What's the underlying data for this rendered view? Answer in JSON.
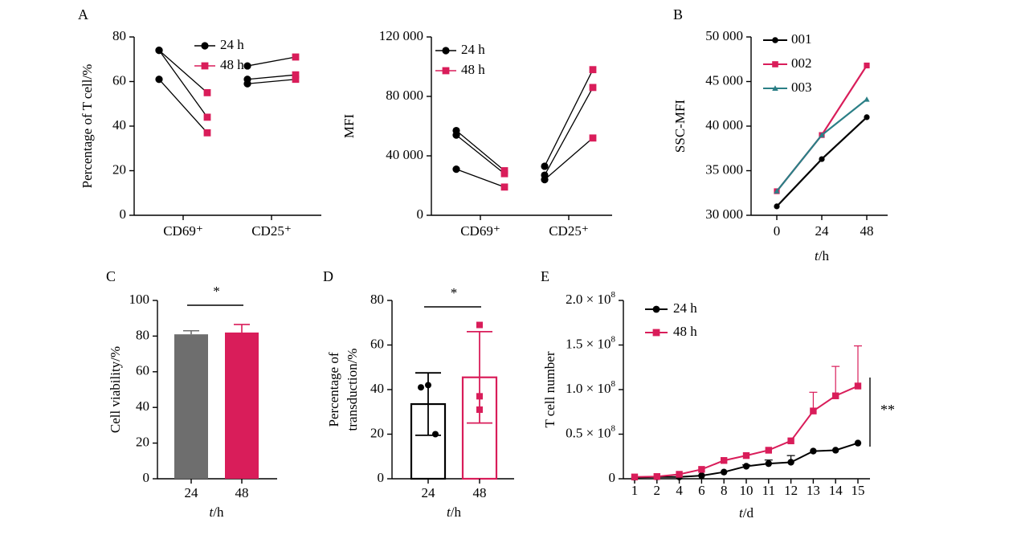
{
  "colors": {
    "black": "#000000",
    "pink": "#d91d5a",
    "teal": "#2b7f86",
    "gray": "#6e6e6e"
  },
  "chart_data": [
    {
      "panel": "A",
      "type": "paired-line",
      "ylabel": "Percentage of T cell/%",
      "categories": [
        "CD69⁺",
        "CD25⁺"
      ],
      "ylim": [
        0,
        80
      ],
      "yticks": [
        "0",
        "20",
        "40",
        "60",
        "80"
      ],
      "legend": [
        "24 h",
        "48 h"
      ],
      "groups": [
        {
          "category": "CD69⁺",
          "pairs": [
            [
              74,
              55
            ],
            [
              74,
              44
            ],
            [
              61,
              37
            ]
          ]
        },
        {
          "category": "CD25⁺",
          "pairs": [
            [
              67,
              71
            ],
            [
              61,
              63
            ],
            [
              59,
              61
            ]
          ]
        }
      ]
    },
    {
      "panel": "",
      "type": "paired-line",
      "ylabel": "MFI",
      "categories": [
        "CD69⁺",
        "CD25⁺"
      ],
      "ylim": [
        0,
        120000
      ],
      "yticks": [
        "0",
        "40 000",
        "80 000",
        "120 000"
      ],
      "legend": [
        "24 h",
        "48 h"
      ],
      "groups": [
        {
          "category": "CD69⁺",
          "pairs": [
            [
              57000,
              30000
            ],
            [
              54000,
              28000
            ],
            [
              31000,
              19000
            ]
          ]
        },
        {
          "category": "CD25⁺",
          "pairs": [
            [
              33000,
              98000
            ],
            [
              27000,
              86000
            ],
            [
              24000,
              52000
            ]
          ]
        }
      ]
    },
    {
      "panel": "B",
      "type": "line",
      "ylabel": "SSC-MFI",
      "xlabel": "t/h",
      "x": [
        0,
        24,
        48
      ],
      "xticks": [
        "0",
        "24",
        "48"
      ],
      "ylim": [
        30000,
        50000
      ],
      "yticks": [
        "30 000",
        "35 000",
        "40 000",
        "45 000",
        "50 000"
      ],
      "series": [
        {
          "name": "001",
          "values": [
            31000,
            36300,
            41000
          ],
          "color": "#000000",
          "marker": "circle"
        },
        {
          "name": "002",
          "values": [
            32700,
            39000,
            46800
          ],
          "color": "#d91d5a",
          "marker": "square"
        },
        {
          "name": "003",
          "values": [
            32700,
            39000,
            43000
          ],
          "color": "#2b7f86",
          "marker": "triangle"
        }
      ]
    },
    {
      "panel": "C",
      "type": "bar",
      "ylabel": "Cell viability/%",
      "xlabel": "t/h",
      "categories": [
        "24",
        "48"
      ],
      "values": [
        81,
        82
      ],
      "errors": [
        2,
        4.5
      ],
      "ylim": [
        0,
        100
      ],
      "yticks": [
        "0",
        "20",
        "40",
        "60",
        "80",
        "100"
      ],
      "significance": "*"
    },
    {
      "panel": "D",
      "type": "bar",
      "ylabel_lines": [
        "Percentage of",
        "transduction/%"
      ],
      "xlabel": "t/h",
      "categories": [
        "24",
        "48"
      ],
      "values": [
        33.5,
        45.5
      ],
      "errors": [
        14,
        20.5
      ],
      "points": [
        [
          41,
          20,
          42
        ],
        [
          69,
          31,
          37
        ]
      ],
      "ylim": [
        0,
        80
      ],
      "yticks": [
        "0",
        "20",
        "40",
        "60",
        "80"
      ],
      "significance": "*"
    },
    {
      "panel": "E",
      "type": "line",
      "ylabel": "T cell number",
      "xlabel": "t/d",
      "xticks": [
        "1",
        "2",
        "4",
        "6",
        "8",
        "10",
        "11",
        "12",
        "13",
        "14",
        "15"
      ],
      "ylim": [
        0,
        200000000
      ],
      "ytick_mantissa": [
        "0",
        "0.5",
        "1.0",
        "1.5",
        "2.0"
      ],
      "ytick_times": "× 10",
      "ytick_exponent": "8",
      "series": [
        {
          "name": "24 h",
          "values": [
            1500000,
            2000000,
            2000000,
            3500000,
            7500000,
            14000000,
            17000000,
            18500000,
            31000000,
            32000000,
            40000000
          ],
          "errors": [
            0,
            0,
            0,
            0,
            0,
            1500000,
            4000000,
            7500000,
            0,
            0,
            0
          ],
          "color": "#000000",
          "marker": "circle"
        },
        {
          "name": "48 h",
          "values": [
            2000000,
            2500000,
            5000000,
            10500000,
            20500000,
            26000000,
            32000000,
            42500000,
            76000000,
            93000000,
            104000000
          ],
          "errors": [
            0,
            0,
            0,
            0,
            0,
            0,
            0,
            0,
            21000000,
            33000000,
            45000000
          ],
          "color": "#d91d5a",
          "marker": "square"
        }
      ],
      "significance": "**"
    }
  ]
}
